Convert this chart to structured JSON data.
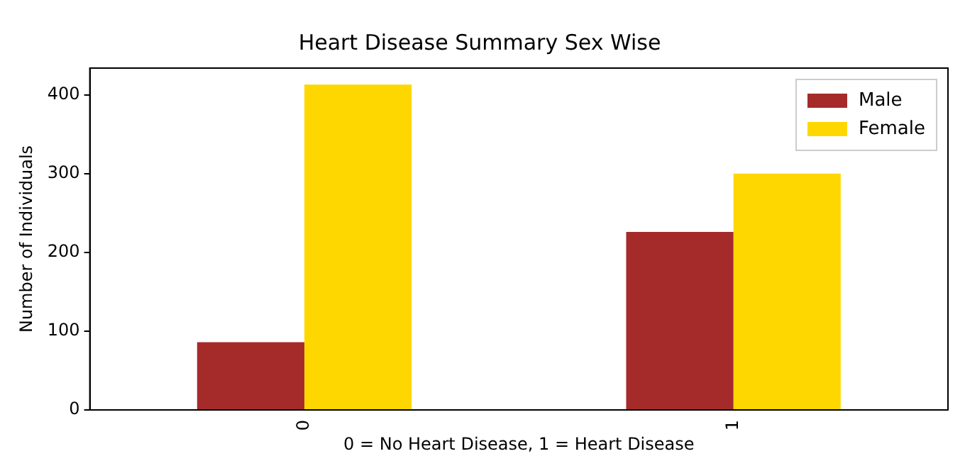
{
  "chart_data": {
    "type": "bar",
    "title": "Heart Disease Summary Sex Wise",
    "xlabel": "0 = No Heart Disease, 1 = Heart Disease",
    "ylabel": "Number of Individuals",
    "categories": [
      "0",
      "1"
    ],
    "series": [
      {
        "name": "Male",
        "color": "#a52a2a",
        "values": [
          86,
          226
        ]
      },
      {
        "name": "Female",
        "color": "#ffd700",
        "values": [
          413,
          300
        ]
      }
    ],
    "ylim": [
      0,
      434
    ],
    "yticks": [
      0,
      100,
      200,
      300,
      400
    ],
    "grid": false,
    "legend": "top right"
  }
}
